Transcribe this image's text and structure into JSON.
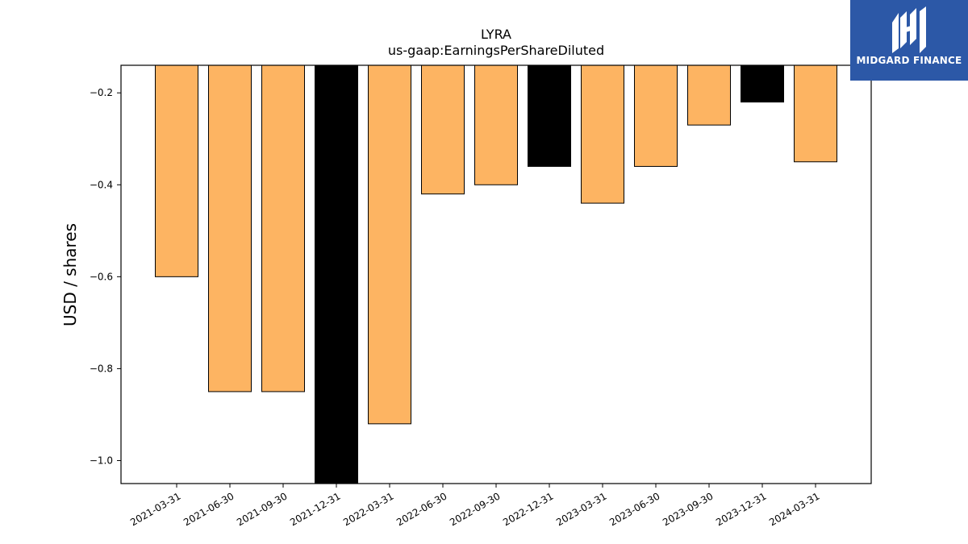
{
  "brand": {
    "name": "MIDGARD FINANCE",
    "background": "#2c58a7",
    "text_color": "#ffffff",
    "icon": "midgard-logo-mark"
  },
  "chart_data": {
    "type": "bar",
    "title": "LYRA",
    "subtitle": "us-gaap:EarningsPerShareDiluted",
    "xlabel": "",
    "ylabel": "USD / shares",
    "categories": [
      "2021-03-31",
      "2021-06-30",
      "2021-09-30",
      "2021-12-31",
      "2022-03-31",
      "2022-06-30",
      "2022-09-30",
      "2022-12-31",
      "2023-03-31",
      "2023-06-30",
      "2023-09-30",
      "2023-12-31",
      "2024-03-31"
    ],
    "values": [
      -0.6,
      -0.85,
      -0.85,
      -1.05,
      -0.92,
      -0.42,
      -0.4,
      -0.36,
      -0.44,
      -0.36,
      -0.27,
      -0.22,
      -0.35
    ],
    "bar_colors": [
      "#fdb462",
      "#fdb462",
      "#fdb462",
      "#000000",
      "#fdb462",
      "#fdb462",
      "#fdb462",
      "#000000",
      "#fdb462",
      "#fdb462",
      "#fdb462",
      "#000000",
      "#fdb462"
    ],
    "ylim": [
      -1.05,
      -0.14
    ],
    "yticks": [
      -0.2,
      -0.4,
      -0.6,
      -0.8,
      -1.0
    ],
    "ytick_labels": [
      "−0.2",
      "−0.4",
      "−0.6",
      "−0.8",
      "−1.0"
    ],
    "grid": false,
    "legend": "none"
  }
}
